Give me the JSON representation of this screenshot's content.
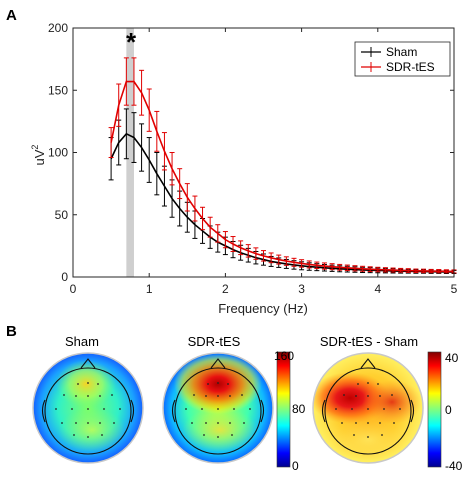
{
  "panel_a_letter": "A",
  "panel_b_letter": "B",
  "significance_marker": "*",
  "chart_data": {
    "type": "line",
    "xlabel": "Frequency (Hz)",
    "ylabel_base": "uV",
    "ylabel_exp": "2",
    "xlim": [
      0,
      5
    ],
    "ylim": [
      0,
      200
    ],
    "xticks": [
      "0",
      "1",
      "2",
      "3",
      "4",
      "5"
    ],
    "yticks": [
      "0",
      "50",
      "100",
      "150",
      "200"
    ],
    "legend_position": "top-right",
    "highlight_band": [
      0.7,
      0.8
    ],
    "x": [
      0.5,
      0.6,
      0.7,
      0.8,
      0.9,
      1.0,
      1.1,
      1.2,
      1.3,
      1.4,
      1.5,
      1.6,
      1.7,
      1.8,
      1.9,
      2.0,
      2.1,
      2.2,
      2.3,
      2.4,
      2.5,
      2.6,
      2.7,
      2.8,
      2.9,
      3.0,
      3.1,
      3.2,
      3.3,
      3.4,
      3.5,
      3.6,
      3.7,
      3.8,
      3.9,
      4.0,
      4.1,
      4.2,
      4.3,
      4.4,
      4.5,
      4.6,
      4.7,
      4.8,
      4.9,
      5.0
    ],
    "series": [
      {
        "name": "Sham",
        "color": "#000000",
        "values": [
          95,
          108,
          115,
          112,
          104,
          94,
          83,
          73,
          63,
          55,
          48,
          42,
          37,
          32,
          28,
          25,
          22,
          19.5,
          17.5,
          15.5,
          14,
          12.5,
          11.5,
          10.5,
          9.7,
          9,
          8.4,
          7.9,
          7.4,
          7,
          6.6,
          6.3,
          6,
          5.7,
          5.5,
          5.3,
          5.1,
          4.9,
          4.7,
          4.6,
          4.5,
          4.4,
          4.3,
          4.2,
          4.1,
          4
        ],
        "errors": [
          17,
          18,
          20,
          20,
          19,
          18,
          17,
          16,
          15,
          14,
          12,
          11,
          10,
          9,
          8,
          7,
          6.5,
          6,
          5.5,
          5,
          4.5,
          4,
          3.8,
          3.6,
          3.4,
          3.2,
          3,
          2.8,
          2.6,
          2.5,
          2.4,
          2.3,
          2.2,
          2.1,
          2,
          1.9,
          1.8,
          1.7,
          1.6,
          1.5,
          1.5,
          1.4,
          1.4,
          1.3,
          1.3,
          1.2
        ]
      },
      {
        "name": "SDR-tES",
        "color": "#e00000",
        "values": [
          108,
          138,
          157,
          157,
          148,
          134,
          117,
          101,
          87,
          75,
          64,
          55,
          47,
          40,
          35,
          30,
          26.5,
          23.5,
          21,
          18.8,
          17,
          15.4,
          14,
          12.8,
          11.8,
          10.9,
          10.1,
          9.4,
          8.8,
          8.3,
          7.8,
          7.4,
          7,
          6.6,
          6.3,
          6,
          5.8,
          5.6,
          5.4,
          5.2,
          5,
          4.9,
          4.8,
          4.7,
          4.6,
          4.5
        ],
        "errors": [
          12,
          17,
          19,
          19,
          18,
          17,
          16,
          15,
          13,
          12,
          11,
          10,
          9,
          8,
          7,
          6.5,
          6,
          5.5,
          5,
          4.6,
          4.2,
          3.9,
          3.6,
          3.4,
          3.2,
          3,
          2.8,
          2.6,
          2.5,
          2.4,
          2.3,
          2.2,
          2.1,
          2,
          1.9,
          1.8,
          1.7,
          1.6,
          1.5,
          1.5,
          1.4,
          1.4,
          1.3,
          1.3,
          1.2,
          1.2
        ]
      }
    ]
  },
  "topomaps": [
    {
      "title": "Sham"
    },
    {
      "title": "SDR-tES"
    },
    {
      "title": "SDR-tES - Sham"
    }
  ],
  "colorbars": [
    {
      "ticks": [
        "160",
        "80",
        "0"
      ],
      "range": [
        0,
        160
      ]
    },
    {
      "ticks": [
        "40",
        "0",
        "-40"
      ],
      "range": [
        -40,
        40
      ]
    }
  ]
}
